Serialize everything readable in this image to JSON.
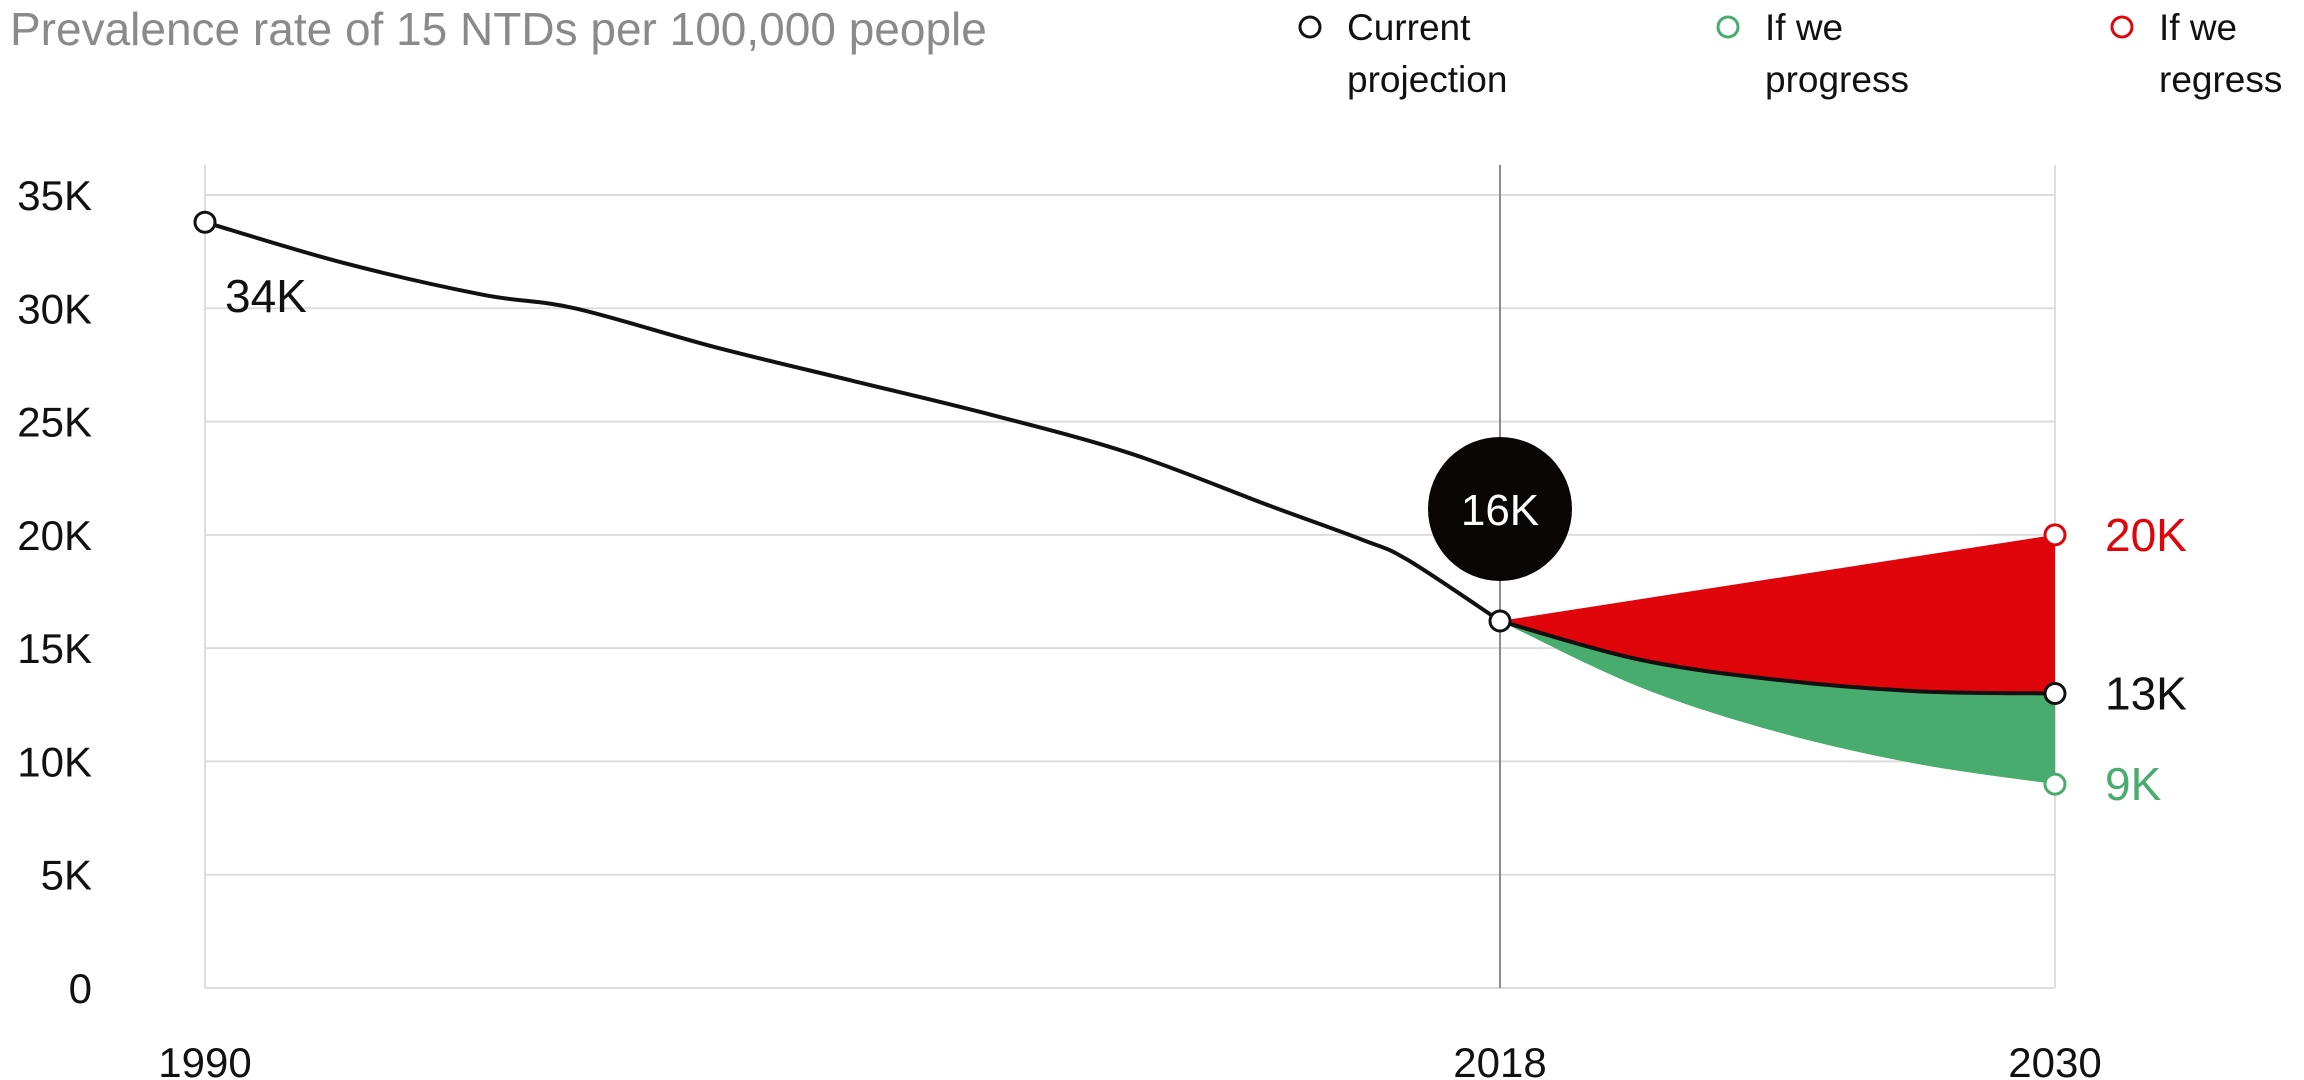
{
  "chart_data": {
    "type": "line",
    "title": "Prevalence rate of 15 NTDs per 100,000 people",
    "xlabel": "",
    "ylabel": "",
    "xlim": [
      1990,
      2030
    ],
    "ylim": [
      0,
      35000
    ],
    "x_ticks": [
      "1990",
      "2018",
      "2030"
    ],
    "y_ticks": [
      "0",
      "5K",
      "10K",
      "15K",
      "20K",
      "25K",
      "30K",
      "35K"
    ],
    "y_tick_values": [
      0,
      5000,
      10000,
      15000,
      20000,
      25000,
      30000,
      35000
    ],
    "grid": true,
    "legend_position": "top-right",
    "colors": {
      "current": "#111111",
      "progress": "#47ac6d",
      "regress": "#e0040b"
    },
    "legend": [
      {
        "key": "current",
        "lines": [
          "Current",
          "projection"
        ]
      },
      {
        "key": "progress",
        "lines": [
          "If we",
          "progress"
        ]
      },
      {
        "key": "regress",
        "lines": [
          "If we",
          "regress"
        ]
      }
    ],
    "series": [
      {
        "key": "history",
        "points": [
          [
            1990,
            33800
          ],
          [
            1993,
            32000
          ],
          [
            1996,
            30600
          ],
          [
            1998,
            30000
          ],
          [
            2001,
            28300
          ],
          [
            2004,
            26800
          ],
          [
            2007,
            25300
          ],
          [
            2010,
            23600
          ],
          [
            2013,
            21300
          ],
          [
            2015,
            19800
          ],
          [
            2016,
            18900
          ],
          [
            2018,
            16200
          ]
        ]
      },
      {
        "key": "current",
        "points": [
          [
            2018,
            16200
          ],
          [
            2021,
            14500
          ],
          [
            2024,
            13600
          ],
          [
            2027,
            13100
          ],
          [
            2030,
            13000
          ]
        ]
      },
      {
        "key": "progress",
        "points": [
          [
            2018,
            16200
          ],
          [
            2021,
            13300
          ],
          [
            2024,
            11300
          ],
          [
            2027,
            9900
          ],
          [
            2030,
            9000
          ]
        ]
      },
      {
        "key": "regress",
        "points": [
          [
            2018,
            16200
          ],
          [
            2030,
            20000
          ]
        ]
      }
    ],
    "annotations": {
      "start": {
        "x": 1990,
        "y": 33800,
        "label": "34K"
      },
      "marker_year": 2018,
      "bubble": {
        "x": 2018,
        "y": 16200,
        "label": "16K"
      },
      "end_labels": [
        {
          "key": "regress",
          "x": 2030,
          "y": 20000,
          "label": "20K"
        },
        {
          "key": "current",
          "x": 2030,
          "y": 13000,
          "label": "13K"
        },
        {
          "key": "progress",
          "x": 2030,
          "y": 9000,
          "label": "9K"
        }
      ]
    }
  }
}
